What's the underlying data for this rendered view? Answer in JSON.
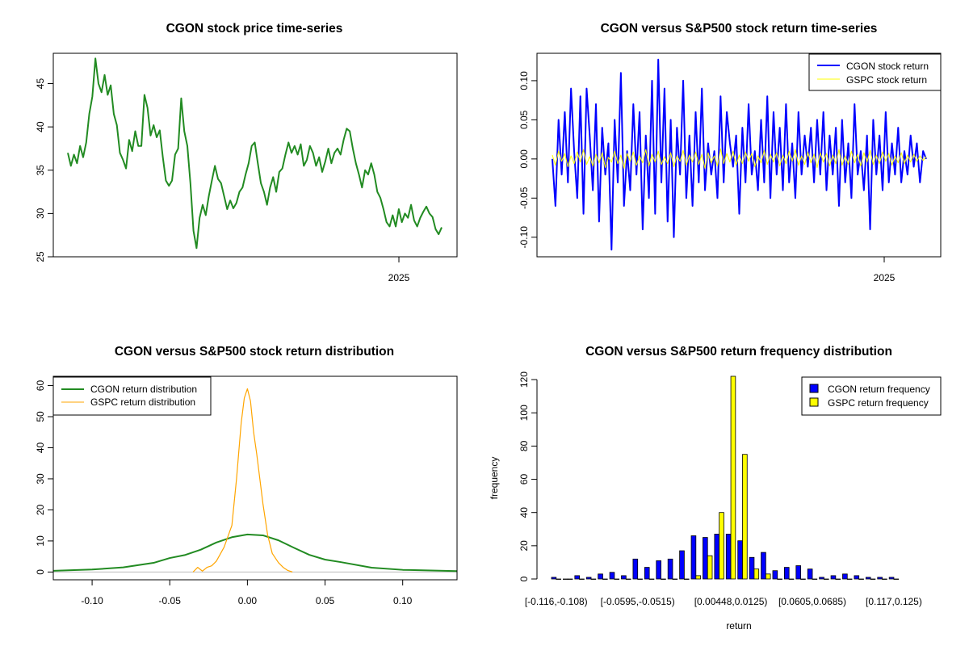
{
  "charts": {
    "c1": {
      "title": "CGON stock price time-series",
      "yticks": [
        25,
        30,
        35,
        40,
        45
      ],
      "xtick_label": "2025",
      "ylim": [
        25,
        48.5
      ]
    },
    "c2": {
      "title": "CGON versus S&P500 stock return time-series",
      "yticks": [
        "-0.10",
        "-0.05",
        "0.00",
        "0.05",
        "0.10"
      ],
      "xtick_label": "2025",
      "ylim": [
        -0.125,
        0.135
      ],
      "legend": [
        "CGON stock return",
        "GSPC stock return"
      ]
    },
    "c3": {
      "title": "CGON versus S&P500 stock return distribution",
      "xticks": [
        "-0.10",
        "-0.05",
        "0.00",
        "0.05",
        "0.10"
      ],
      "yticks": [
        "0",
        "10",
        "20",
        "30",
        "40",
        "50",
        "60"
      ],
      "legend": [
        "CGON return distribution",
        "GSPC return distribution"
      ]
    },
    "c4": {
      "title": "CGON versus S&P500 return frequency distribution",
      "xlabel": "return",
      "ylabel": "frequency",
      "yticks": [
        "0",
        "20",
        "40",
        "60",
        "80",
        "100",
        "120"
      ],
      "xticks": [
        "[-0.116,-0.108)",
        "[-0.0595,-0.0515)",
        "[0.00448,0.0125)",
        "[0.0605,0.0685)",
        "[0.117,0.125)"
      ],
      "legend": [
        "CGON return frequency",
        "GSPC return frequency"
      ]
    }
  },
  "colors": {
    "price": "#228B22",
    "cgon_return": "#0000FF",
    "gspc_return": "#FFFF00",
    "cgon_dist": "#228B22",
    "gspc_dist": "#FFA500",
    "hist_cgon": "#0000FF",
    "hist_gspc": "#FFFF00"
  },
  "chart_data": [
    {
      "type": "line",
      "title": "CGON stock price time-series",
      "xlabel": "",
      "ylabel": "",
      "ylim": [
        25,
        48.5
      ],
      "x_ticks": [
        "2025"
      ],
      "series": [
        {
          "values": [
            37.0,
            35.5,
            36.8,
            35.8,
            37.8,
            36.5,
            38.2,
            41.5,
            43.5,
            47.9,
            45.0,
            44.0,
            46.0,
            43.7,
            44.8,
            41.5,
            40.2,
            37.0,
            36.2,
            35.2,
            38.5,
            37.2,
            39.5,
            37.8,
            37.8,
            43.7,
            42.2,
            39.0,
            40.2,
            38.8,
            39.6,
            36.5,
            33.8,
            33.2,
            33.8,
            36.8,
            37.5,
            43.3,
            39.5,
            37.8,
            33.5,
            28.0,
            26.0,
            29.5,
            31.0,
            29.8,
            32.0,
            33.8,
            35.5,
            34.0,
            33.5,
            32.0,
            30.5,
            31.5,
            30.6,
            31.2,
            32.5,
            33.0,
            34.5,
            35.8,
            37.8,
            38.2,
            35.8,
            33.5,
            32.5,
            31.0,
            33.0,
            34.2,
            32.5,
            34.8,
            35.2,
            36.8,
            38.2,
            37.0,
            37.8,
            36.8,
            38.0,
            35.5,
            36.2,
            37.8,
            37.0,
            35.5,
            36.5,
            34.8,
            36.0,
            37.5,
            35.8,
            37.0,
            37.5,
            36.8,
            38.5,
            39.8,
            39.5,
            37.5,
            35.8,
            34.5,
            33.0,
            35.0,
            34.5,
            35.8,
            34.5,
            32.5,
            31.8,
            30.5,
            29.0,
            28.5,
            29.8,
            28.5,
            30.5,
            29.0,
            30.0,
            29.5,
            31.0,
            29.2,
            28.5,
            29.5,
            30.2,
            30.8,
            30.0,
            29.6,
            28.2,
            27.6,
            28.4
          ]
        }
      ]
    },
    {
      "type": "line",
      "title": "CGON versus S&P500 stock return time-series",
      "xlabel": "",
      "ylabel": "",
      "ylim": [
        -0.125,
        0.135
      ],
      "x_ticks": [
        "2025"
      ],
      "series": [
        {
          "name": "CGON stock return",
          "values": [
            0.0,
            -0.06,
            0.05,
            -0.02,
            0.06,
            -0.03,
            0.09,
            0.01,
            -0.05,
            0.08,
            -0.07,
            0.09,
            0.03,
            -0.04,
            0.07,
            -0.08,
            0.04,
            -0.02,
            0.02,
            -0.116,
            0.05,
            -0.03,
            0.11,
            -0.06,
            0.01,
            -0.04,
            0.07,
            -0.02,
            0.06,
            -0.09,
            0.03,
            -0.05,
            0.1,
            -0.07,
            0.127,
            -0.03,
            0.09,
            -0.08,
            0.05,
            -0.1,
            0.04,
            -0.02,
            0.1,
            -0.05,
            0.03,
            -0.06,
            0.06,
            -0.03,
            0.09,
            -0.04,
            0.02,
            -0.02,
            0.01,
            -0.05,
            0.08,
            -0.03,
            0.06,
            0.02,
            -0.01,
            0.03,
            -0.07,
            0.04,
            -0.03,
            0.07,
            -0.02,
            0.01,
            -0.04,
            0.05,
            -0.03,
            0.08,
            -0.05,
            0.06,
            -0.02,
            0.04,
            -0.04,
            0.07,
            -0.03,
            0.02,
            -0.05,
            0.06,
            -0.02,
            0.03,
            -0.01,
            0.04,
            -0.03,
            0.05,
            -0.02,
            0.06,
            -0.04,
            0.03,
            -0.02,
            0.04,
            -0.06,
            0.05,
            -0.03,
            0.02,
            -0.05,
            0.07,
            -0.02,
            0.01,
            -0.04,
            0.03,
            -0.09,
            0.05,
            -0.02,
            0.03,
            -0.04,
            0.06,
            -0.03,
            0.02,
            -0.02,
            0.04,
            -0.03,
            0.01,
            -0.02,
            0.03,
            -0.01,
            0.02,
            -0.03,
            0.01,
            0.0
          ]
        },
        {
          "name": "GSPC stock return",
          "values": [
            0.005,
            -0.008,
            0.01,
            -0.003,
            0.007,
            -0.01,
            0.004,
            -0.006,
            0.009,
            -0.004,
            0.012,
            -0.007,
            0.003,
            -0.009,
            0.006,
            -0.005,
            0.008,
            -0.011,
            0.002,
            -0.004,
            0.01,
            -0.006,
            0.005,
            -0.012,
            0.007,
            -0.003,
            0.009,
            -0.008,
            0.004,
            -0.005,
            0.012,
            -0.009,
            0.006,
            -0.004,
            0.01,
            -0.007,
            0.003,
            -0.006,
            0.008,
            -0.01,
            0.004,
            -0.003,
            0.011,
            -0.008,
            0.005,
            -0.004,
            0.009,
            -0.007,
            0.006,
            -0.012,
            0.008,
            -0.005,
            0.004,
            -0.009,
            0.013,
            -0.006,
            0.007,
            -0.004,
            0.01,
            -0.008,
            0.005,
            -0.006,
            0.009,
            -0.003,
            0.007,
            -0.01,
            0.004,
            -0.005,
            0.011,
            -0.007,
            0.006,
            -0.004,
            0.008,
            -0.009,
            0.005,
            -0.006,
            0.01,
            -0.003,
            0.012,
            -0.008,
            0.004,
            -0.007,
            0.009,
            -0.005,
            0.006,
            -0.011,
            0.008,
            -0.004,
            0.007,
            -0.009,
            0.005,
            -0.006,
            0.012,
            -0.008,
            0.004,
            -0.007,
            0.01,
            -0.005,
            0.006,
            -0.009,
            0.008,
            -0.004,
            0.011,
            -0.007,
            0.005,
            -0.006,
            0.009,
            -0.003,
            0.007,
            -0.008,
            0.004,
            -0.005,
            0.008,
            -0.006,
            0.005,
            -0.004,
            0.006,
            -0.003,
            0.004,
            -0.002,
            0.003
          ]
        }
      ]
    },
    {
      "type": "line",
      "title": "CGON versus S&P500 stock return distribution",
      "xlabel": "",
      "ylabel": "",
      "xlim": [
        -0.125,
        0.135
      ],
      "ylim": [
        -2.5,
        63
      ],
      "series": [
        {
          "name": "CGON return distribution",
          "x": [
            -0.125,
            -0.1,
            -0.08,
            -0.06,
            -0.05,
            -0.04,
            -0.03,
            -0.02,
            -0.01,
            0.0,
            0.01,
            0.02,
            0.03,
            0.04,
            0.05,
            0.06,
            0.08,
            0.1,
            0.135
          ],
          "values": [
            0.4,
            0.8,
            1.5,
            3.0,
            4.5,
            5.5,
            7.2,
            9.5,
            11.2,
            12.1,
            11.8,
            10.2,
            7.8,
            5.5,
            4.0,
            3.2,
            1.4,
            0.7,
            0.3
          ]
        },
        {
          "name": "GSPC return distribution",
          "x": [
            -0.035,
            -0.032,
            -0.029,
            -0.026,
            -0.023,
            -0.02,
            -0.015,
            -0.01,
            -0.007,
            -0.004,
            -0.002,
            0.0,
            0.002,
            0.004,
            0.006,
            0.008,
            0.01,
            0.013,
            0.016,
            0.02,
            0.023,
            0.026,
            0.029
          ],
          "values": [
            0.0,
            1.5,
            0.3,
            1.5,
            2.0,
            3.5,
            8.0,
            15.0,
            30.0,
            48.0,
            56.0,
            59.0,
            55.0,
            45.0,
            38.0,
            30.0,
            22.0,
            12.0,
            6.0,
            3.0,
            1.5,
            0.5,
            0.0
          ]
        }
      ]
    },
    {
      "type": "bar",
      "title": "CGON versus S&P500 return frequency distribution",
      "xlabel": "return",
      "ylabel": "frequency",
      "ylim": [
        0,
        122
      ],
      "categories": [
        "[-0.116,-0.108)",
        "[-0.108,-0.1)",
        "[-0.1,-0.0915)",
        "[-0.0915,-0.0835)",
        "[-0.0835,-0.0755)",
        "[-0.0755,-0.0675)",
        "[-0.0675,-0.0595)",
        "[-0.0595,-0.0515)",
        "[-0.0515,-0.0435)",
        "[-0.0435,-0.0355)",
        "[-0.0355,-0.0275)",
        "[-0.0275,-0.0195)",
        "[-0.0195,-0.0115)",
        "[-0.0115,-0.00352)",
        "[-0.00352,0.00448)",
        "[0.00448,0.0125)",
        "[0.0125,0.0205)",
        "[0.0205,0.0285)",
        "[0.0285,0.0365)",
        "[0.0365,0.0445)",
        "[0.0445,0.0525)",
        "[0.0525,0.0605)",
        "[0.0605,0.0685)",
        "[0.0685,0.0765)",
        "[0.0765,0.0845)",
        "[0.0845,0.0925)",
        "[0.0925,0.1)",
        "[0.1,0.109)",
        "[0.109,0.117)",
        "[0.117,0.125)"
      ],
      "series": [
        {
          "name": "CGON return frequency",
          "values": [
            1,
            0,
            2,
            1,
            3,
            4,
            2,
            12,
            7,
            11,
            12,
            17,
            26,
            25,
            27,
            27,
            23,
            13,
            16,
            5,
            7,
            8,
            6,
            1,
            2,
            3,
            2,
            1,
            1,
            1
          ]
        },
        {
          "name": "GSPC return frequency",
          "values": [
            0,
            0,
            0,
            0,
            0,
            0,
            0,
            0,
            0,
            0,
            0,
            0,
            2,
            14,
            40,
            122,
            75,
            6,
            3,
            0,
            0,
            0,
            0,
            0,
            0,
            0,
            0,
            0,
            0,
            0
          ]
        }
      ]
    }
  ]
}
